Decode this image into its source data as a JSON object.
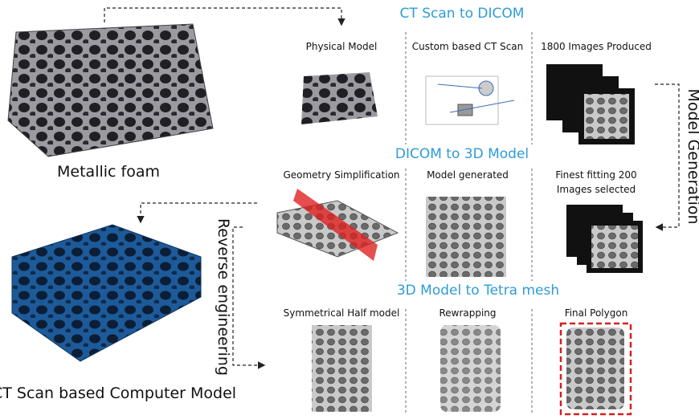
{
  "left": {
    "top_label": "Metallic foam",
    "bottom_label": "CT Scan based Computer Model"
  },
  "side_labels": {
    "right": "Model Generation",
    "left": "Reverse engineering"
  },
  "sections": [
    {
      "title": "CT Scan to DICOM",
      "steps": [
        {
          "lines": [
            "Physical Model"
          ]
        },
        {
          "lines": [
            "Custom based CT Scan"
          ]
        },
        {
          "lines": [
            "1800 Images Produced"
          ]
        }
      ]
    },
    {
      "title": "DICOM to 3D Model",
      "steps": [
        {
          "lines": [
            "Geometry Simplification"
          ]
        },
        {
          "lines": [
            "Model generated"
          ]
        },
        {
          "lines": [
            "Finest fitting 200",
            "Images selected"
          ]
        }
      ]
    },
    {
      "title": "3D Model to Tetra mesh",
      "steps": [
        {
          "lines": [
            "Symmetrical Half model"
          ]
        },
        {
          "lines": [
            "Rewrapping"
          ]
        },
        {
          "lines": [
            "Final Polygon"
          ]
        }
      ]
    }
  ]
}
